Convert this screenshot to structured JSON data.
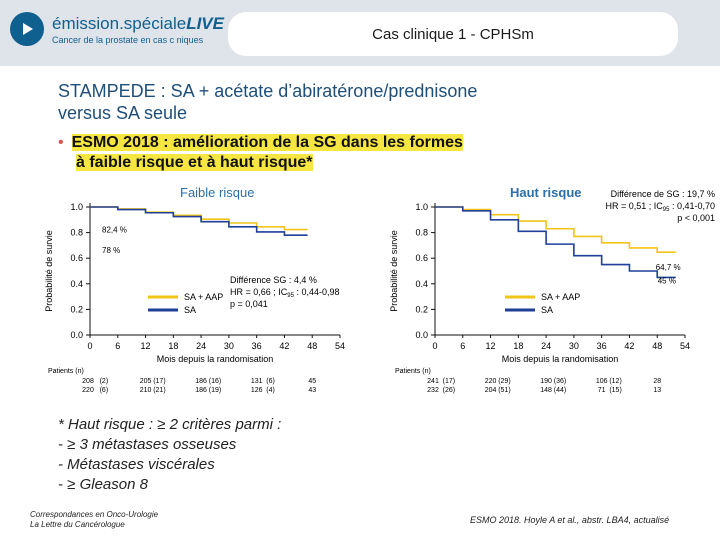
{
  "header": {
    "brand_prefix": "émission.spéciale",
    "brand_live": "LIVE",
    "brand_sub": "Cancer de la prostate en cas c niques",
    "title": "Cas clinique 1 - CPHSm"
  },
  "slide": {
    "title_line1": "STAMPEDE : SA + acétate d’abiratérone/prednisone",
    "title_line2": "versus SA seule",
    "bullet_line1": "ESMO 2018 : amélioration de la SG dans les formes",
    "bullet_line2": "à faible risque et à haut risque*"
  },
  "chart_data": [
    {
      "type": "line",
      "title": "Faible risque",
      "xlabel": "Mois depuis la randomisation",
      "ylabel": "Probabilité de survie",
      "xlim": [
        0,
        54
      ],
      "ylim": [
        0,
        1.0
      ],
      "xticks": [
        "0",
        "6",
        "12",
        "18",
        "24",
        "30",
        "36",
        "42",
        "48",
        "54"
      ],
      "yticks": [
        "0.0",
        "0.2",
        "0.4",
        "0.6",
        "0.8",
        "1.0"
      ],
      "series": [
        {
          "name": "SA + AAP",
          "color": "#f0c419",
          "x": [
            0,
            6,
            12,
            18,
            24,
            30,
            36,
            42,
            47
          ],
          "y": [
            1.0,
            0.985,
            0.96,
            0.935,
            0.905,
            0.875,
            0.845,
            0.824,
            0.824
          ]
        },
        {
          "name": "SA",
          "color": "#1f3f99",
          "x": [
            0,
            6,
            12,
            18,
            24,
            30,
            36,
            42,
            47
          ],
          "y": [
            1.0,
            0.98,
            0.955,
            0.925,
            0.885,
            0.845,
            0.805,
            0.78,
            0.78
          ]
        }
      ],
      "annotations": [
        "82,4 %",
        "78 %"
      ],
      "stats": [
        "Différence SG : 4,4 %",
        "HR = 0,66 ; IC",
        "95",
        " : 0,44-0,98",
        "p = 0,041"
      ],
      "at_risk_label": "Patients (n)",
      "at_risk": [
        [
          "208",
          "(2)",
          "205",
          "(17)",
          "186",
          "(16)",
          "131",
          "(6)",
          "45"
        ],
        [
          "220",
          "(6)",
          "210",
          "(21)",
          "186",
          "(19)",
          "126",
          "(4)",
          "43"
        ]
      ]
    },
    {
      "type": "line",
      "title": "Haut risque",
      "xlabel": "Mois depuis la randomisation",
      "ylabel": "Probabilité de survie",
      "xlim": [
        0,
        54
      ],
      "ylim": [
        0,
        1.0
      ],
      "xticks": [
        "0",
        "6",
        "12",
        "18",
        "24",
        "30",
        "36",
        "42",
        "48",
        "54"
      ],
      "yticks": [
        "0.0",
        "0.2",
        "0.4",
        "0.6",
        "0.8",
        "1.0"
      ],
      "series": [
        {
          "name": "SA + AAP",
          "color": "#f0c419",
          "x": [
            0,
            6,
            12,
            18,
            24,
            30,
            36,
            42,
            48,
            52
          ],
          "y": [
            1.0,
            0.98,
            0.94,
            0.89,
            0.83,
            0.77,
            0.72,
            0.68,
            0.647,
            0.647
          ]
        },
        {
          "name": "SA",
          "color": "#1f3f99",
          "x": [
            0,
            6,
            12,
            18,
            24,
            30,
            36,
            42,
            48,
            52
          ],
          "y": [
            1.0,
            0.97,
            0.9,
            0.81,
            0.71,
            0.62,
            0.55,
            0.5,
            0.45,
            0.45
          ]
        }
      ],
      "annotations": [
        "64,7 %",
        "45 %"
      ],
      "stats": [
        "Différence de SG : 19,7 %",
        "HR = 0,51 ; IC",
        "95",
        " : 0,41-0,70",
        "p < 0,001"
      ],
      "at_risk_label": "Patients (n)",
      "at_risk": [
        [
          "241",
          "(17)",
          "220",
          "(29)",
          "190",
          "(36)",
          "106",
          "(12)",
          "28"
        ],
        [
          "232",
          "(26)",
          "204",
          "(51)",
          "148",
          "(44)",
          "71",
          "(15)",
          "13"
        ]
      ]
    }
  ],
  "footnote": {
    "line1": "* Haut risque : ≥ 2 critères parmi :",
    "line2": "-  ≥ 3 métastases osseuses",
    "line3": "-  Métastases viscérales",
    "line4": "-  ≥ Gleason 8"
  },
  "footer": {
    "left_line1": "Correspondances en Onco-Urologie",
    "left_line2": "La Lettre du Cancérologue",
    "right": "ESMO 2018. Hoyle A et al., abstr. LBA4, actualisé"
  },
  "colors": {
    "brand": "#0f5f8f",
    "header_bg": "#dfe4ea",
    "title": "#1f4e79",
    "highlight": "#f5e642",
    "aap": "#f0c419",
    "sa": "#1f3f99"
  }
}
